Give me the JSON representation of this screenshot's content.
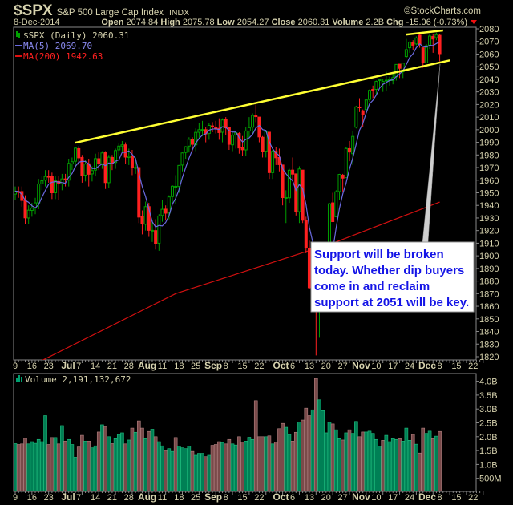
{
  "header": {
    "symbol": "$SPX",
    "name": "S&P 500 Large Cap Index",
    "exchange": "INDX",
    "watermark": "©StockCharts.com",
    "date": "8-Dec-2014",
    "open_label": "Open",
    "open": "2074.84",
    "high_label": "High",
    "high": "2075.78",
    "low_label": "Low",
    "low": "2054.27",
    "close_label": "Close",
    "close": "2060.31",
    "volume_label": "Volume",
    "volume": "2.2B",
    "chg_label": "Chg",
    "chg": "-15.06 (-0.73%)",
    "chg_direction": "down"
  },
  "legend": {
    "price": "$SPX (Daily) 2060.31",
    "ma5": "MA(5) 2069.70",
    "ma200": "MA(200) 1942.63",
    "volume": "Volume 2,191,132,672"
  },
  "annotation": {
    "lines": [
      "Support will be broken",
      "today. Whether dip buyers",
      "come in and reclaim",
      "support at 2051 will be key."
    ]
  },
  "colors": {
    "background": "#000000",
    "up": "#00a000",
    "down": "#ff2020",
    "ma5": "#6a6ae0",
    "ma200": "#d01010",
    "trendline": "#ffff33",
    "volume_up": "#008055",
    "volume_down": "#7a4a4a",
    "text": "#d6d2ae",
    "annotation_text": "#1414e6"
  },
  "chart_data": [
    {
      "type": "candlestick",
      "title": "$SPX (Daily)",
      "ylim": [
        1820,
        2080
      ],
      "y_ticks": [
        1820,
        1830,
        1840,
        1850,
        1860,
        1870,
        1880,
        1890,
        1900,
        1910,
        1920,
        1930,
        1940,
        1950,
        1960,
        1970,
        1980,
        1990,
        2000,
        2010,
        2020,
        2030,
        2040,
        2050,
        2060,
        2070,
        2080
      ],
      "x_ticks": [
        {
          "label": "9",
          "date": "2014-06-09",
          "bold": false
        },
        {
          "label": "16",
          "date": "2014-06-16",
          "bold": false
        },
        {
          "label": "23",
          "date": "2014-06-23",
          "bold": false
        },
        {
          "label": "Jul",
          "date": "2014-07-01",
          "bold": true
        },
        {
          "label": "7",
          "date": "2014-07-07",
          "bold": false
        },
        {
          "label": "14",
          "date": "2014-07-14",
          "bold": false
        },
        {
          "label": "21",
          "date": "2014-07-21",
          "bold": false
        },
        {
          "label": "28",
          "date": "2014-07-28",
          "bold": false
        },
        {
          "label": "Aug",
          "date": "2014-08-01",
          "bold": true
        },
        {
          "label": "11",
          "date": "2014-08-11",
          "bold": false
        },
        {
          "label": "18",
          "date": "2014-08-18",
          "bold": false
        },
        {
          "label": "25",
          "date": "2014-08-25",
          "bold": false
        },
        {
          "label": "Sep",
          "date": "2014-09-02",
          "bold": true
        },
        {
          "label": "8",
          "date": "2014-09-08",
          "bold": false
        },
        {
          "label": "15",
          "date": "2014-09-15",
          "bold": false
        },
        {
          "label": "22",
          "date": "2014-09-22",
          "bold": false
        },
        {
          "label": "Oct",
          "date": "2014-10-01",
          "bold": true
        },
        {
          "label": "6",
          "date": "2014-10-06",
          "bold": false
        },
        {
          "label": "13",
          "date": "2014-10-13",
          "bold": false
        },
        {
          "label": "20",
          "date": "2014-10-20",
          "bold": false
        },
        {
          "label": "27",
          "date": "2014-10-27",
          "bold": false
        },
        {
          "label": "Nov",
          "date": "2014-11-03",
          "bold": true
        },
        {
          "label": "10",
          "date": "2014-11-10",
          "bold": false
        },
        {
          "label": "17",
          "date": "2014-11-17",
          "bold": false
        },
        {
          "label": "24",
          "date": "2014-11-24",
          "bold": false
        },
        {
          "label": "Dec",
          "date": "2014-12-01",
          "bold": true
        },
        {
          "label": "8",
          "date": "2014-12-08",
          "bold": false
        },
        {
          "label": "15",
          "date": "2014-12-15",
          "bold": false
        },
        {
          "label": "22",
          "date": "2014-12-22",
          "bold": false
        }
      ],
      "ohlc_columns": [
        "open",
        "high",
        "low",
        "close"
      ],
      "ohlc": [
        [
          1949,
          1955,
          1944,
          1951.3
        ],
        [
          1951,
          1955,
          1946,
          1950.8
        ],
        [
          1951,
          1955,
          1939,
          1943.9
        ],
        [
          1944,
          1948,
          1925,
          1930.1
        ],
        [
          1930,
          1940,
          1925,
          1936.2
        ],
        [
          1936,
          1942,
          1931,
          1937.8
        ],
        [
          1938,
          1946,
          1933,
          1942.0
        ],
        [
          1942,
          1961,
          1937,
          1957.0
        ],
        [
          1957,
          1963,
          1952,
          1959.5
        ],
        [
          1960,
          1968,
          1955,
          1962.9
        ],
        [
          1963,
          1968,
          1958,
          1962.6
        ],
        [
          1963,
          1966,
          1945,
          1950.0
        ],
        [
          1950,
          1963,
          1945,
          1959.5
        ],
        [
          1959,
          1963,
          1944,
          1957.2
        ],
        [
          1957,
          1965,
          1952,
          1961.0
        ],
        [
          1961,
          1965,
          1955,
          1960.2
        ],
        [
          1960,
          1977,
          1955,
          1973.3
        ],
        [
          1973,
          1978,
          1968,
          1974.6
        ],
        [
          1975,
          1986,
          1970,
          1985.4
        ],
        [
          1985,
          1987,
          1972,
          1977.7
        ],
        [
          1978,
          1980,
          1958,
          1963.7
        ],
        [
          1964,
          1976,
          1959,
          1972.8
        ],
        [
          1973,
          1977,
          1955,
          1964.7
        ],
        [
          1965,
          1971,
          1959,
          1967.6
        ],
        [
          1968,
          1981,
          1963,
          1977.1
        ],
        [
          1977,
          1982,
          1968,
          1973.3
        ],
        [
          1973,
          1983,
          1969,
          1981.6
        ],
        [
          1982,
          1983,
          1953,
          1958.1
        ],
        [
          1958,
          1980,
          1954,
          1978.2
        ],
        [
          1978,
          1980,
          1968,
          1973.6
        ],
        [
          1974,
          1985,
          1969,
          1983.5
        ],
        [
          1984,
          1989,
          1979,
          1987.0
        ],
        [
          1987,
          1991,
          1982,
          1988.0
        ],
        [
          1988,
          1990,
          1973,
          1978.3
        ],
        [
          1978,
          1985,
          1972,
          1978.9
        ],
        [
          1979,
          1984,
          1964,
          1970.0
        ],
        [
          1970,
          1978,
          1965,
          1970.1
        ],
        [
          1970,
          1971,
          1926,
          1930.7
        ],
        [
          1931,
          1936,
          1917,
          1925.2
        ],
        [
          1925,
          1943,
          1920,
          1939.0
        ],
        [
          1939,
          1942,
          1915,
          1920.2
        ],
        [
          1920,
          1928,
          1911,
          1920.2
        ],
        [
          1920,
          1929,
          1905,
          1909.6
        ],
        [
          1910,
          1933,
          1904,
          1931.6
        ],
        [
          1932,
          1944,
          1927,
          1936.9
        ],
        [
          1937,
          1940,
          1928,
          1933.8
        ],
        [
          1934,
          1948,
          1929,
          1946.7
        ],
        [
          1947,
          1956,
          1942,
          1955.2
        ],
        [
          1955,
          1964,
          1941,
          1955.1
        ],
        [
          1955,
          1972,
          1950,
          1971.7
        ],
        [
          1972,
          1982,
          1967,
          1981.6
        ],
        [
          1982,
          1987,
          1977,
          1986.5
        ],
        [
          1987,
          1994,
          1982,
          1992.4
        ],
        [
          1992,
          1994,
          1983,
          1988.4
        ],
        [
          1988,
          2001,
          1983,
          1997.9
        ],
        [
          1998,
          2005,
          1993,
          2000.0
        ],
        [
          2000,
          2007,
          1995,
          2000.1
        ],
        [
          2000,
          2002,
          1990,
          1996.7
        ],
        [
          1997,
          2005,
          1992,
          2003.4
        ],
        [
          2003,
          2006,
          1998,
          2002.3
        ],
        [
          2002,
          2007,
          1997,
          2000.7
        ],
        [
          2001,
          2009,
          1992,
          1997.7
        ],
        [
          1998,
          2009,
          1990,
          2007.7
        ],
        [
          2008,
          2010,
          1996,
          2001.5
        ],
        [
          2002,
          2002,
          1984,
          1988.4
        ],
        [
          1988,
          1998,
          1983,
          1995.7
        ],
        [
          1996,
          1998,
          1985,
          1997.5
        ],
        [
          1997,
          1998,
          1981,
          1985.5
        ],
        [
          1986,
          1995,
          1979,
          1984.1
        ],
        [
          1984,
          2002,
          1979,
          1999.0
        ],
        [
          1999,
          2010,
          1994,
          2001.6
        ],
        [
          2002,
          2013,
          1997,
          2011.4
        ],
        [
          2011,
          2020,
          2006,
          2010.4
        ],
        [
          2010,
          2010,
          1990,
          1994.3
        ],
        [
          1994,
          1995,
          1978,
          1982.8
        ],
        [
          1983,
          1999,
          1978,
          1998.3
        ],
        [
          1998,
          1998,
          1961,
          1966.0
        ],
        [
          1966,
          1984,
          1961,
          1982.9
        ],
        [
          1983,
          1986,
          1972,
          1977.8
        ],
        [
          1978,
          1985,
          1967,
          1972.3
        ],
        [
          1972,
          1972,
          1940,
          1946.2
        ],
        [
          1946,
          1952,
          1926,
          1946.2
        ],
        [
          1946,
          1969,
          1942,
          1967.9
        ],
        [
          1968,
          1978,
          1960,
          1964.8
        ],
        [
          1965,
          1965,
          1932,
          1935.1
        ],
        [
          1935,
          1971,
          1926,
          1968.9
        ],
        [
          1968,
          1968,
          1926,
          1928.2
        ],
        [
          1928,
          1931,
          1902,
          1906.1
        ],
        [
          1906,
          1912,
          1874,
          1874.7
        ],
        [
          1875,
          1898,
          1872,
          1877.7
        ],
        [
          1875,
          1875,
          1821,
          1862.5
        ],
        [
          1856,
          1876,
          1835,
          1862.8
        ],
        [
          1864,
          1899,
          1864,
          1886.8
        ],
        [
          1886,
          1905,
          1882,
          1904.0
        ],
        [
          1909,
          1942,
          1909,
          1941.3
        ],
        [
          1942,
          1950,
          1927,
          1927.1
        ],
        [
          1931,
          1952,
          1931,
          1950.8
        ],
        [
          1951,
          1965,
          1944,
          1964.6
        ],
        [
          1964,
          1965,
          1951,
          1961.6
        ],
        [
          1962,
          1986,
          1962,
          1985.1
        ],
        [
          1985,
          1991,
          1975,
          1982.3
        ],
        [
          1981,
          1999,
          1972,
          1994.7
        ],
        [
          2002,
          2019,
          2001,
          2018.1
        ],
        [
          2018,
          2025,
          2014,
          2017.8
        ],
        [
          2015,
          2016,
          2002,
          2012.1
        ],
        [
          2016,
          2024,
          2014,
          2023.6
        ],
        [
          2024,
          2032,
          2022,
          2031.2
        ],
        [
          2032,
          2035,
          2025,
          2031.9
        ],
        [
          2032,
          2039,
          2028,
          2038.3
        ],
        [
          2039,
          2040,
          2034,
          2039.7
        ],
        [
          2037,
          2040,
          2030,
          2038.3
        ],
        [
          2039,
          2046,
          2031,
          2039.3
        ],
        [
          2039,
          2042,
          2035,
          2039.8
        ],
        [
          2039,
          2045,
          2036,
          2041.3
        ],
        [
          2042,
          2052,
          2039,
          2051.8
        ],
        [
          2052,
          2052,
          2041,
          2048.7
        ],
        [
          2046,
          2053,
          2041,
          2052.8
        ],
        [
          2058,
          2072,
          2057,
          2063.5
        ],
        [
          2065,
          2070,
          2061,
          2069.4
        ],
        [
          2069,
          2071,
          2063,
          2067.0
        ],
        [
          2068,
          2074,
          2067,
          2072.8
        ],
        [
          2075,
          2076,
          2065,
          2067.6
        ],
        [
          2065,
          2065,
          2049,
          2053.4
        ],
        [
          2053,
          2068,
          2053,
          2066.6
        ],
        [
          2067,
          2076,
          2064,
          2074.3
        ],
        [
          2074,
          2076,
          2061,
          2071.9
        ],
        [
          2073,
          2077,
          2071,
          2075.4
        ],
        [
          2074.84,
          2075.78,
          2054.27,
          2060.31
        ]
      ],
      "ma5_period": 5,
      "ma200": [
        {
          "date": "2014-06-19",
          "value": 1817
        },
        {
          "date": "2014-08-15",
          "value": 1870
        },
        {
          "date": "2014-10-23",
          "value": 1911
        },
        {
          "date": "2014-12-08",
          "value": 1942.63
        }
      ],
      "trendlines": [
        {
          "from": {
            "date": "2014-07-03",
            "value": 1989.7
          },
          "to": {
            "date": "2014-12-11",
            "value": 2055
          }
        },
        {
          "from": {
            "date": "2014-11-21",
            "value": 2075.5
          },
          "to": {
            "date": "2014-12-09",
            "value": 2078.7
          }
        }
      ]
    },
    {
      "type": "bar",
      "title": "Volume",
      "unit": "billions",
      "ylim": [
        0,
        4.2
      ],
      "y_ticks": [
        {
          "v": 0.5,
          "label": "500M"
        },
        {
          "v": 1.0,
          "label": "1.0B"
        },
        {
          "v": 1.5,
          "label": "1.5B"
        },
        {
          "v": 2.0,
          "label": "2.0B"
        },
        {
          "v": 2.5,
          "label": "2.5B"
        },
        {
          "v": 3.0,
          "label": "3.0B"
        },
        {
          "v": 3.5,
          "label": "3.5B"
        },
        {
          "v": 4.0,
          "label": "4.0B"
        }
      ],
      "values": [
        1.75,
        1.72,
        1.74,
        1.94,
        1.74,
        1.82,
        1.76,
        1.9,
        1.82,
        2.76,
        1.72,
        1.97,
        1.97,
        1.74,
        2.4,
        1.84,
        1.9,
        1.72,
        1.26,
        1.63,
        2.05,
        1.84,
        1.84,
        1.6,
        1.67,
        2.17,
        2.43,
        2.37,
        2.0,
        1.75,
        1.93,
        2.08,
        2.14,
        1.74,
        1.88,
        2.31,
        2.16,
        2.57,
        2.31,
        1.93,
        2.19,
        2.27,
        2.0,
        1.82,
        1.67,
        1.5,
        1.57,
        1.47,
        1.97,
        1.66,
        1.6,
        1.57,
        1.66,
        1.47,
        1.33,
        1.4,
        1.4,
        1.28,
        1.33,
        1.69,
        1.72,
        1.82,
        1.79,
        1.74,
        1.9,
        1.74,
        1.7,
        2.0,
        1.8,
        1.84,
        1.98,
        1.9,
        3.3,
        2.0,
        2.0,
        2.0,
        2.03,
        1.74,
        1.8,
        2.29,
        2.48,
        2.34,
        2.08,
        1.84,
        2.16,
        2.53,
        2.6,
        3.03,
        2.76,
        2.97,
        4.1,
        3.33,
        2.94,
        2.14,
        2.52,
        2.46,
        2.25,
        1.93,
        1.88,
        2.14,
        2.25,
        2.12,
        2.55,
        2.0,
        2.17,
        2.17,
        2.2,
        2.12,
        1.9,
        1.66,
        1.87,
        2.05,
        1.82,
        1.93,
        1.9,
        1.93,
        1.84,
        2.31,
        1.87,
        2.08,
        1.73,
        1.41,
        2.31,
        2.12,
        2.2,
        1.93,
        2.02,
        2.19
      ]
    }
  ]
}
